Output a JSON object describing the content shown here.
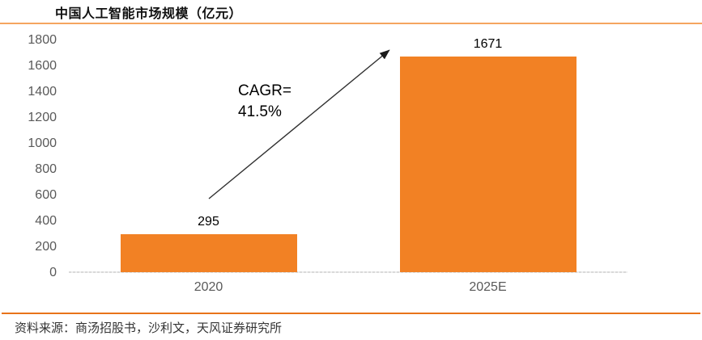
{
  "title": "中国人工智能市场规模（亿元）",
  "annotation": {
    "line1": "CAGR=",
    "line2": "41.5%"
  },
  "source": "资料来源：商汤招股书，沙利文，天风证券研究所",
  "colors": {
    "bar": "#F28124",
    "title_underline": "#F5A55F",
    "source_divider": "#E8731A",
    "axis_line": "#D9D9D9",
    "tick_label": "#595959",
    "category_label": "#595959",
    "value_label": "#000000",
    "arrow": "#303030",
    "title_text": "#111111",
    "source_text": "#333333"
  },
  "chart_data": {
    "type": "bar",
    "categories": [
      "2020",
      "2025E"
    ],
    "values": [
      295,
      1671
    ],
    "title": "中国人工智能市场规模（亿元）",
    "xlabel": "",
    "ylabel": "",
    "ylim": [
      0,
      1800
    ],
    "ytick_step": 200,
    "grid": false,
    "legend": false,
    "annotation": "CAGR=41.5%",
    "annotation_target": "2025E bar top"
  }
}
